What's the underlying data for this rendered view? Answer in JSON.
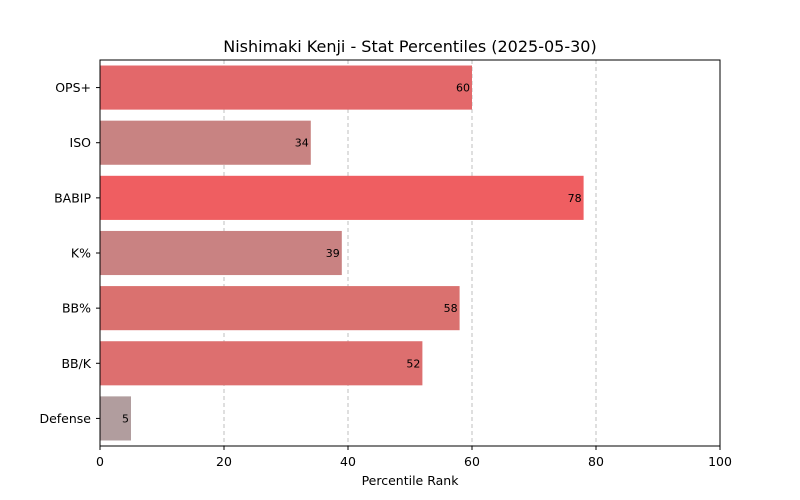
{
  "chart_data": {
    "type": "bar",
    "orientation": "horizontal",
    "title": "Nishimaki Kenji - Stat Percentiles (2025-05-30)",
    "xlabel": "Percentile Rank",
    "ylabel": "",
    "xlim": [
      0,
      100
    ],
    "xticks": [
      0,
      20,
      40,
      60,
      80,
      100
    ],
    "grid": "x-dashed",
    "categories": [
      "OPS+",
      "ISO",
      "BABIP",
      "K%",
      "BB%",
      "BB/K",
      "Defense"
    ],
    "values": [
      60,
      34,
      78,
      39,
      58,
      52,
      5
    ],
    "colors": [
      "#e3686a",
      "#c88382",
      "#ef5e61",
      "#c98282",
      "#da716f",
      "#dd6f6f",
      "#b19d9e"
    ]
  }
}
